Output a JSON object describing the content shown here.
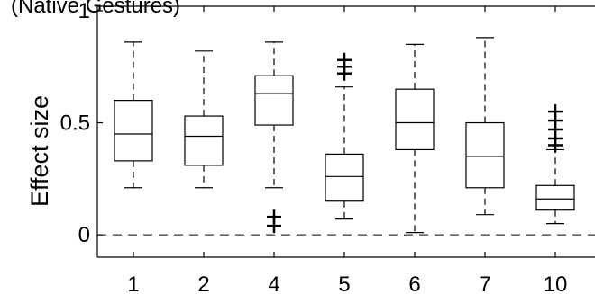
{
  "chart_data": {
    "type": "box",
    "title": "(Native Gestures)",
    "ylabel": "Effect size",
    "xlabel": "",
    "ylim": [
      -0.1,
      1.02
    ],
    "yticks": [
      0,
      0.5,
      1
    ],
    "ytick_labels": [
      "0",
      "0.5",
      "1"
    ],
    "reference_line": 0,
    "grid": false,
    "categories": [
      "1",
      "2",
      "4",
      "5",
      "6",
      "7",
      "10"
    ],
    "boxes": [
      {
        "category": "1",
        "whisker_low": 0.21,
        "q1": 0.33,
        "median": 0.45,
        "q3": 0.6,
        "whisker_high": 0.86,
        "outliers": []
      },
      {
        "category": "2",
        "whisker_low": 0.21,
        "q1": 0.31,
        "median": 0.44,
        "q3": 0.53,
        "whisker_high": 0.82,
        "outliers": []
      },
      {
        "category": "4",
        "whisker_low": 0.21,
        "q1": 0.49,
        "median": 0.63,
        "q3": 0.71,
        "whisker_high": 0.86,
        "outliers": [
          0.04,
          0.08
        ]
      },
      {
        "category": "5",
        "whisker_low": 0.07,
        "q1": 0.15,
        "median": 0.26,
        "q3": 0.36,
        "whisker_high": 0.66,
        "outliers": [
          0.72,
          0.75,
          0.78
        ]
      },
      {
        "category": "6",
        "whisker_low": 0.01,
        "q1": 0.38,
        "median": 0.5,
        "q3": 0.65,
        "whisker_high": 0.85,
        "outliers": []
      },
      {
        "category": "7",
        "whisker_low": 0.09,
        "q1": 0.21,
        "median": 0.35,
        "q3": 0.5,
        "whisker_high": 0.88,
        "outliers": []
      },
      {
        "category": "10",
        "whisker_low": 0.05,
        "q1": 0.11,
        "median": 0.16,
        "q3": 0.22,
        "whisker_high": 0.38,
        "outliers": [
          0.4,
          0.43,
          0.47,
          0.51,
          0.55
        ]
      }
    ]
  }
}
